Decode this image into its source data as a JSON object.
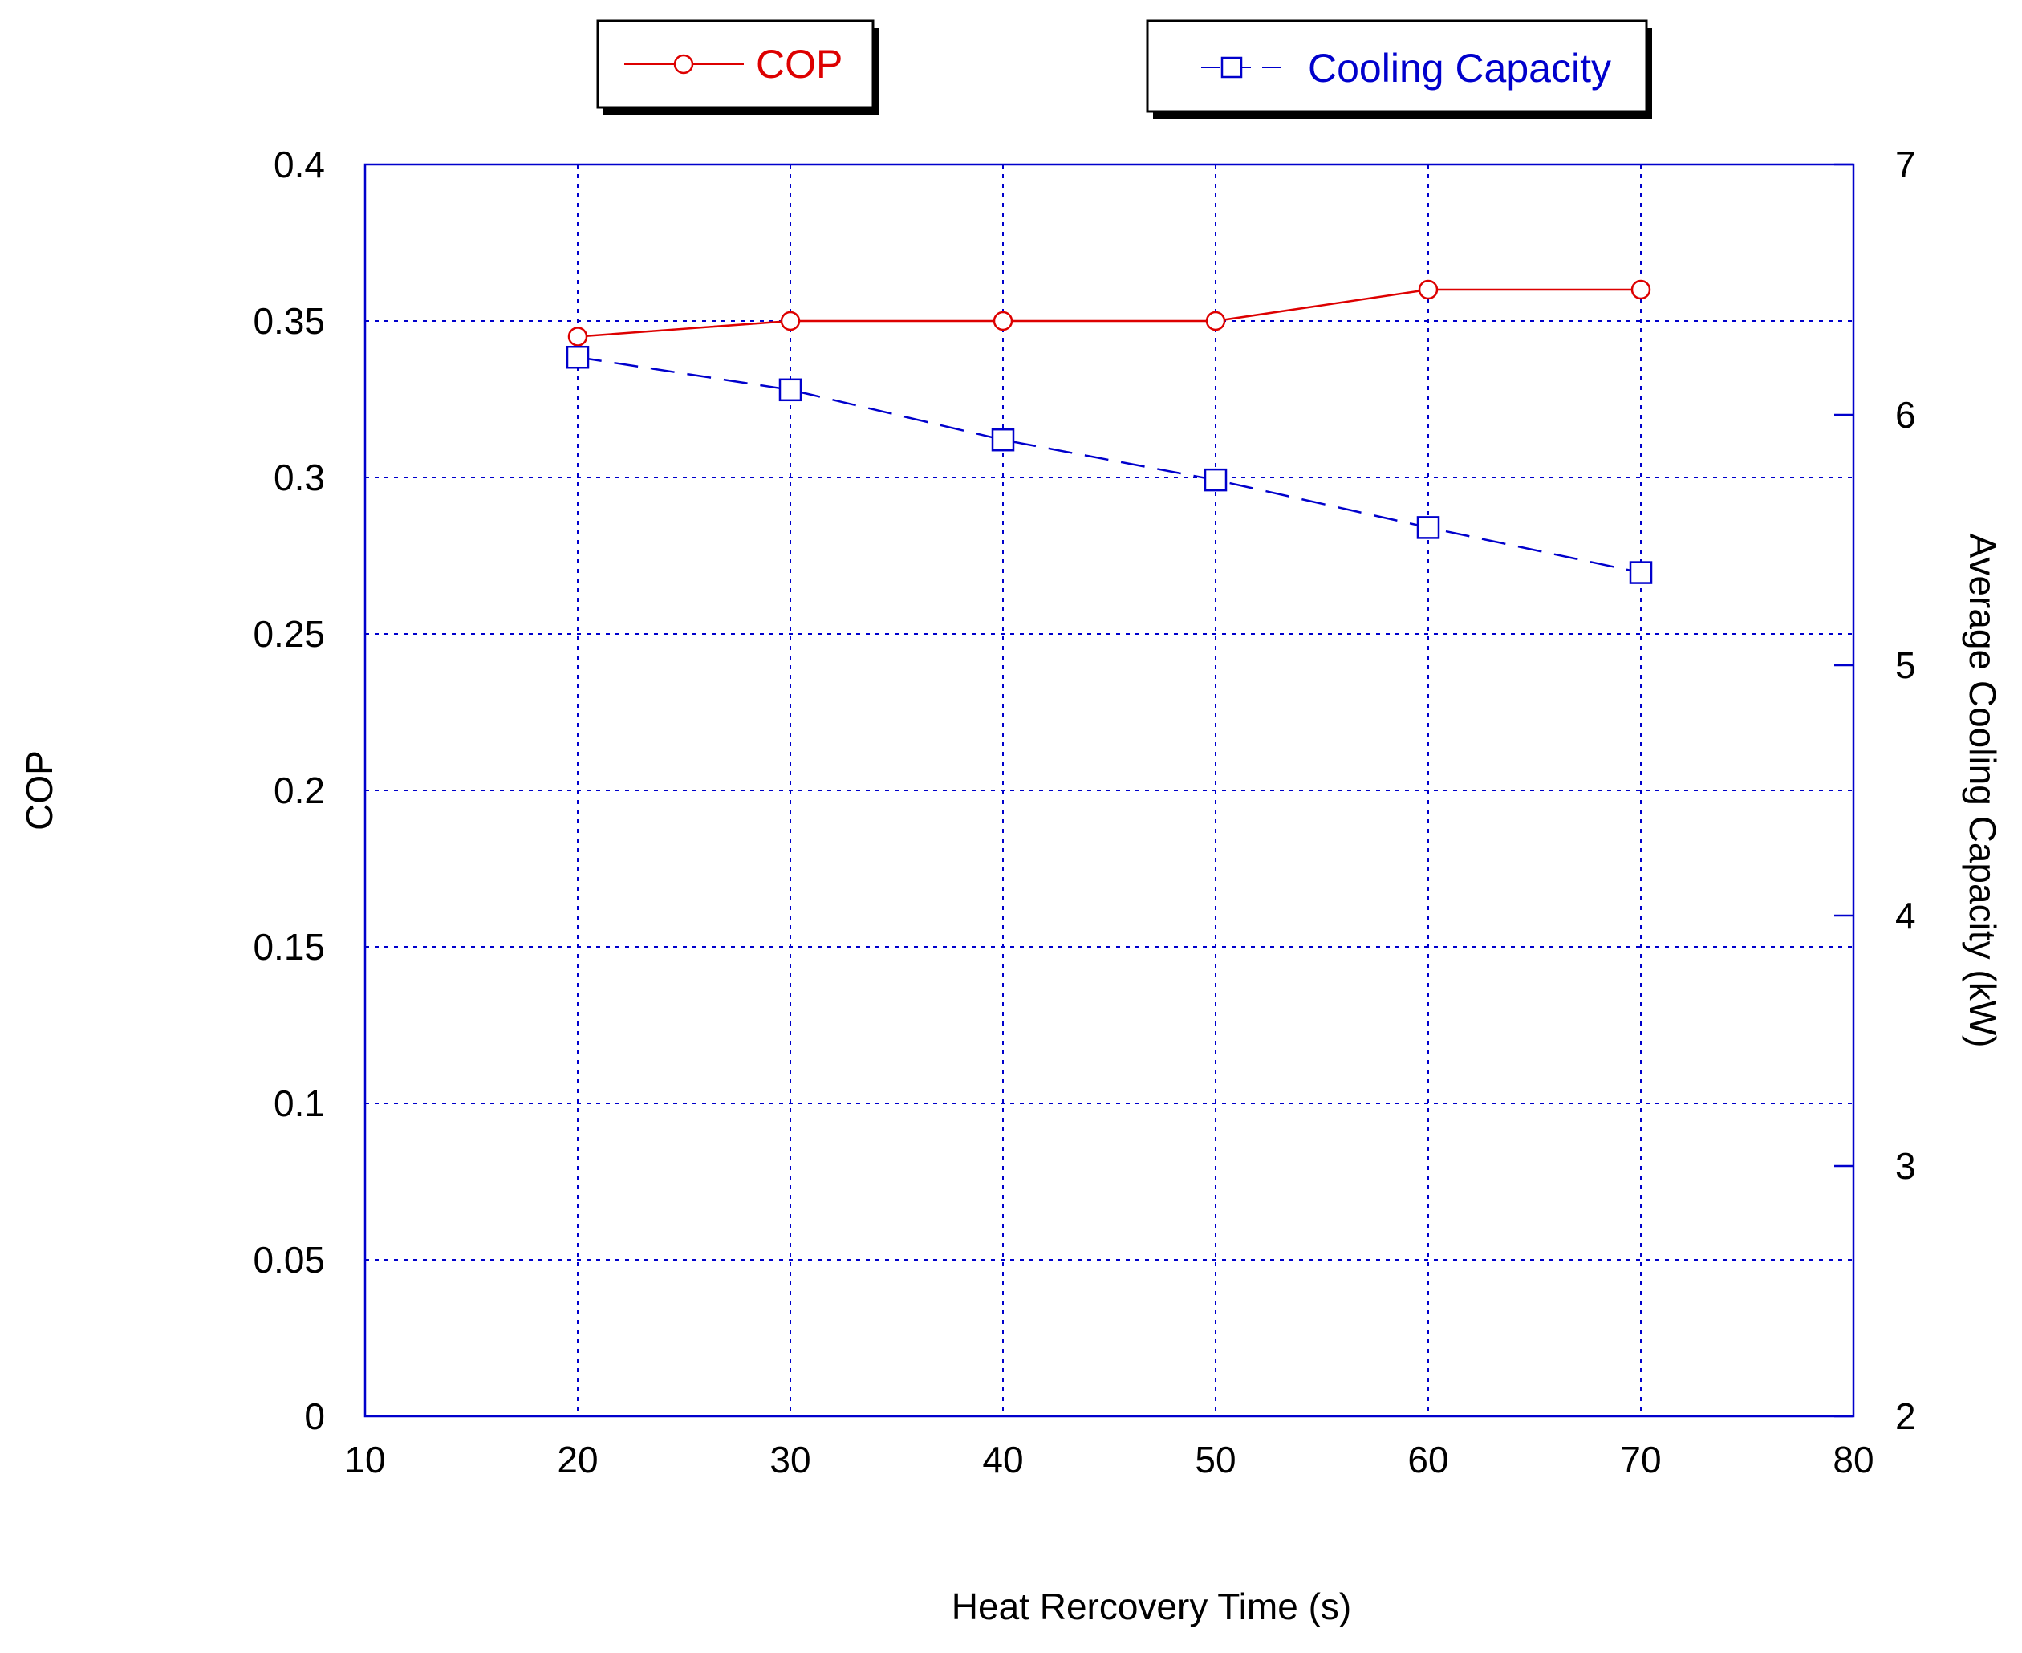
{
  "colors": {
    "cop": "#dd0000",
    "capacity": "#0000cc",
    "frame": "#0000cc",
    "grid": "#0000cc",
    "text": "#000000"
  },
  "legend": {
    "cop_label": "COP",
    "capacity_label": "Cooling Capacity"
  },
  "chart_data": {
    "type": "line",
    "xlabel": "Heat Rercovery Time (s)",
    "ylabel": "COP",
    "y2label": "Average Cooling Capacity (kW)",
    "xlim": [
      10,
      80
    ],
    "ylim": [
      0,
      0.4
    ],
    "y2lim": [
      2,
      7
    ],
    "x_ticks": [
      "10",
      "20",
      "30",
      "40",
      "50",
      "60",
      "70",
      "80"
    ],
    "y_ticks": [
      "0",
      "0.05",
      "0.1",
      "0.15",
      "0.2",
      "0.25",
      "0.3",
      "0.35",
      "0.4"
    ],
    "y2_ticks": [
      "2",
      "3",
      "4",
      "5",
      "6",
      "7"
    ],
    "grid": true,
    "legend_position": "top",
    "series": [
      {
        "name": "COP",
        "axis": "left",
        "marker": "circle",
        "line": "solid",
        "x": [
          20,
          30,
          40,
          50,
          60,
          70
        ],
        "values": [
          0.345,
          0.35,
          0.35,
          0.35,
          0.36,
          0.36
        ]
      },
      {
        "name": "Cooling Capacity",
        "axis": "right",
        "marker": "square",
        "line": "dashed",
        "x": [
          20,
          30,
          40,
          50,
          60,
          70
        ],
        "values": [
          6.23,
          6.1,
          5.9,
          5.74,
          5.55,
          5.37
        ]
      }
    ]
  }
}
